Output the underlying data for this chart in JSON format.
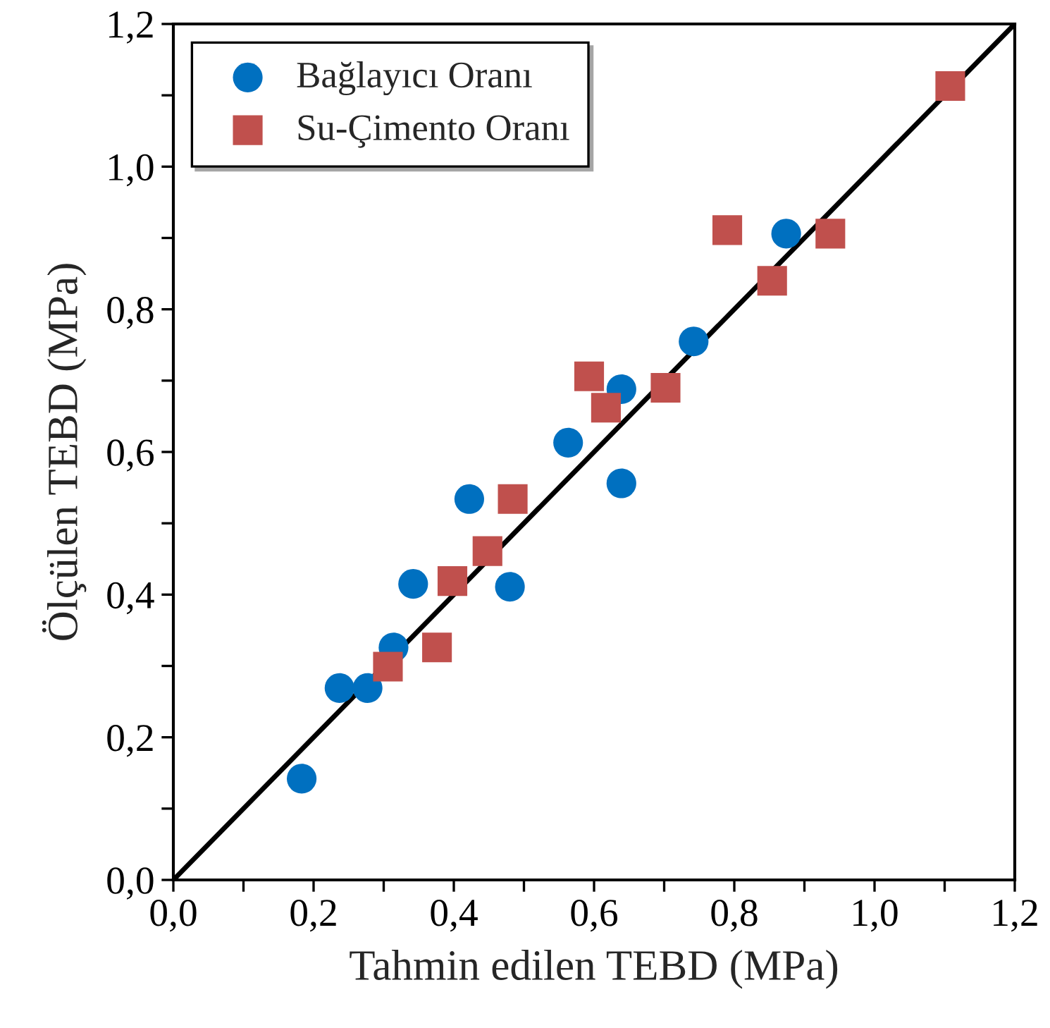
{
  "chart_data": {
    "type": "scatter",
    "xlabel": "Tahmin edilen TEBD (MPa)",
    "ylabel": "Ölçülen TEBD (MPa)",
    "series": [
      {
        "name": "Bağlayıcı Oranı",
        "color": "#0070c0",
        "marker": "circle",
        "x": [
          0.183,
          0.237,
          0.277,
          0.314,
          0.342,
          0.422,
          0.48,
          0.563,
          0.639,
          0.639,
          0.742,
          0.874
        ],
        "values": [
          0.142,
          0.269,
          0.269,
          0.326,
          0.415,
          0.534,
          0.411,
          0.613,
          0.688,
          0.556,
          0.755,
          0.906
        ]
      },
      {
        "name": "Su-Çimento Oranı",
        "color": "#c0504d",
        "marker": "square",
        "x": [
          0.306,
          0.376,
          0.398,
          0.448,
          0.484,
          0.593,
          0.617,
          0.702,
          0.79,
          0.854,
          0.937,
          1.108
        ],
        "values": [
          0.299,
          0.326,
          0.419,
          0.461,
          0.534,
          0.706,
          0.662,
          0.69,
          0.911,
          0.84,
          0.906,
          1.113
        ]
      },
      {
        "type": "line",
        "color": "#000000",
        "marker": "none",
        "x": [
          0,
          1.2
        ],
        "values": [
          0,
          1.2
        ]
      }
    ],
    "xlim": [
      0,
      1.2
    ],
    "ylim": [
      0,
      1.2
    ],
    "xticks": [
      {
        "value": 0,
        "label": "0,0"
      },
      {
        "value": 0.1,
        "label": null
      },
      {
        "value": 0.2,
        "label": "0,2"
      },
      {
        "value": 0.3,
        "label": null
      },
      {
        "value": 0.4,
        "label": "0,4"
      },
      {
        "value": 0.5,
        "label": null
      },
      {
        "value": 0.6,
        "label": "0,6"
      },
      {
        "value": 0.7,
        "label": null
      },
      {
        "value": 0.8,
        "label": "0,8"
      },
      {
        "value": 0.9,
        "label": null
      },
      {
        "value": 1.0,
        "label": "1,0"
      },
      {
        "value": 1.1,
        "label": null
      },
      {
        "value": 1.2,
        "label": "1,2"
      }
    ],
    "yticks": [
      {
        "value": 0,
        "label": "0,0"
      },
      {
        "value": 0.1,
        "label": null
      },
      {
        "value": 0.2,
        "label": "0,2"
      },
      {
        "value": 0.3,
        "label": null
      },
      {
        "value": 0.4,
        "label": "0,4"
      },
      {
        "value": 0.5,
        "label": null
      },
      {
        "value": 0.6,
        "label": "0,6"
      },
      {
        "value": 0.7,
        "label": null
      },
      {
        "value": 0.8,
        "label": "0,8"
      },
      {
        "value": 0.9,
        "label": null
      },
      {
        "value": 1.0,
        "label": "1,0"
      },
      {
        "value": 1.1,
        "label": null
      },
      {
        "value": 1.2,
        "label": "1,2"
      }
    ],
    "grid": false,
    "legend": "top left"
  }
}
